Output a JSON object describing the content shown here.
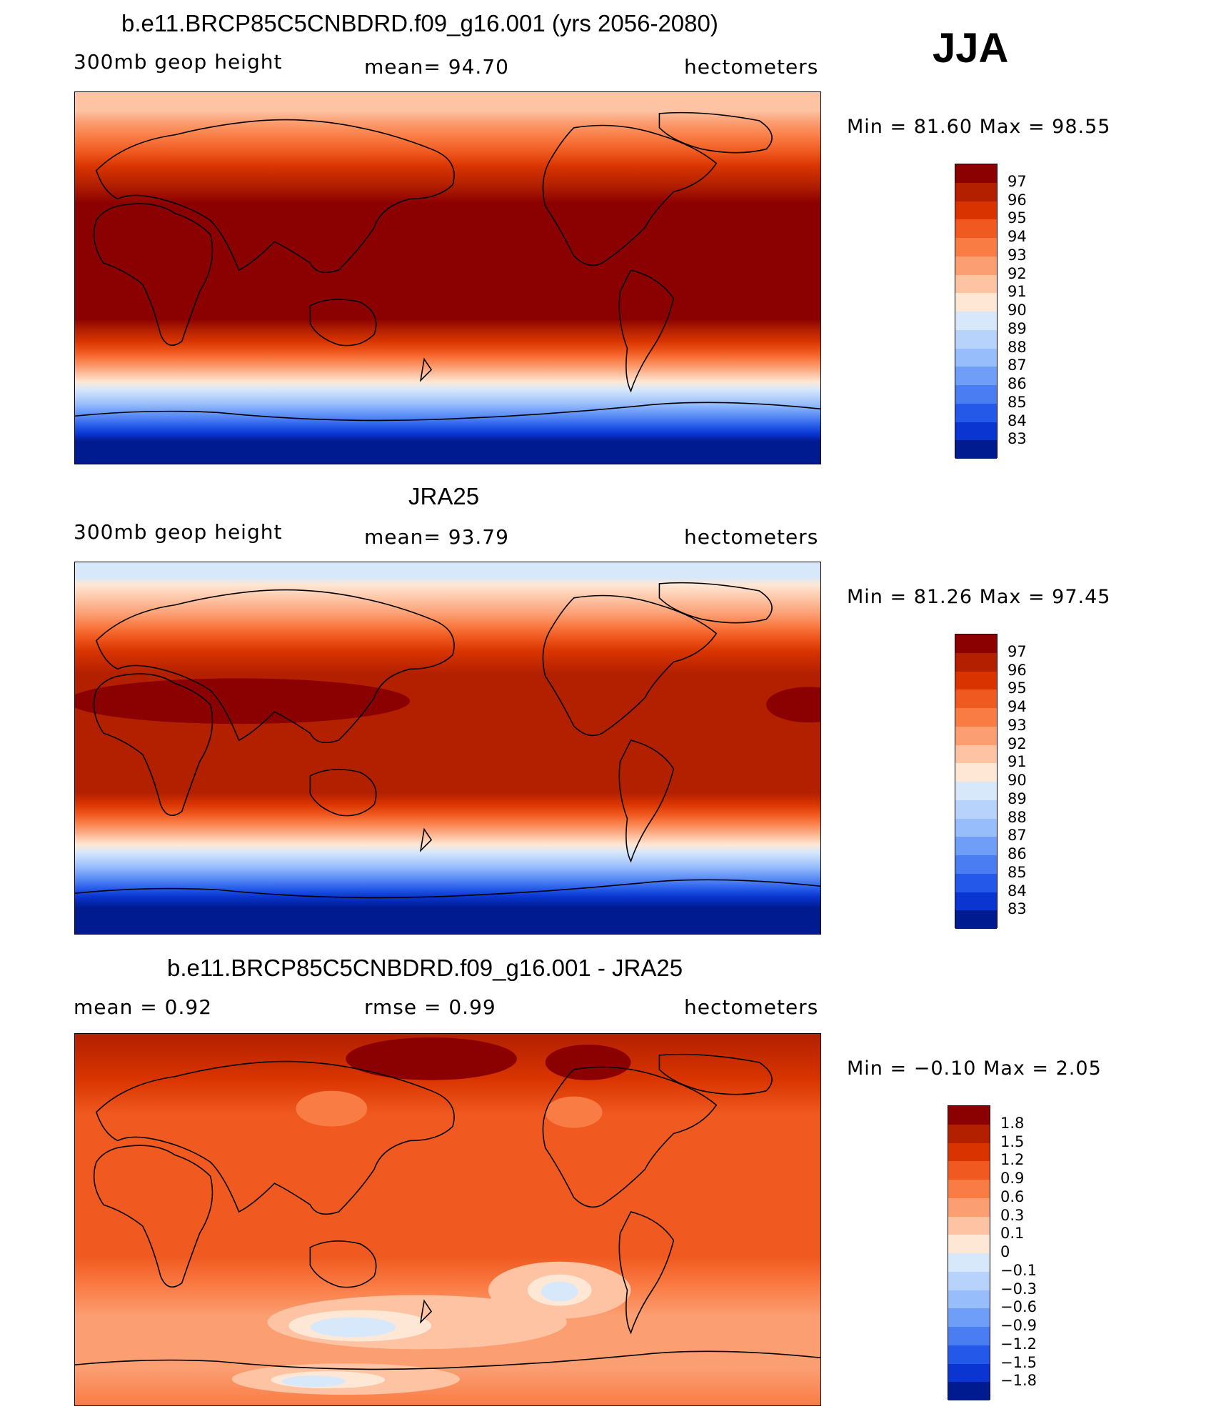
{
  "season": "JJA",
  "panels": [
    {
      "title": "b.e11.BRCP85C5CNBDRD.f09_g16.001 (yrs 2056-2080)",
      "left_label": "300mb geop height",
      "center_label": "mean=   94.70",
      "right_label": "hectometers",
      "minmax": "Min =   81.60 Max =   98.55"
    },
    {
      "title": "JRA25",
      "left_label": "300mb geop height",
      "center_label": "mean=   93.79",
      "right_label": "hectometers",
      "minmax": "Min =   81.26 Max =   97.45"
    },
    {
      "title": "b.e11.BRCP85C5CNBDRD.f09_g16.001 - JRA25",
      "left_label": "mean =    0.92",
      "center_label": "rmse =    0.99",
      "right_label": "hectometers",
      "minmax": "Min =  −0.10 Max =    2.05"
    }
  ],
  "colorbars": {
    "absolute": {
      "labels": [
        "97",
        "96",
        "95",
        "94",
        "93",
        "92",
        "91",
        "90",
        "89",
        "88",
        "87",
        "86",
        "85",
        "84",
        "83"
      ],
      "colors": [
        "#8b0000",
        "#b22000",
        "#d93400",
        "#f05a20",
        "#fa7c45",
        "#fb9e72",
        "#fdc3a3",
        "#fee8d5",
        "#d6e8fa",
        "#b8d3fb",
        "#97bdfb",
        "#6f9ef8",
        "#4a7df2",
        "#2358e8",
        "#0a35d0",
        "#001a90"
      ]
    },
    "difference": {
      "labels": [
        "1.8",
        "1.5",
        "1.2",
        "0.9",
        "0.6",
        "0.3",
        "0.1",
        "0",
        "−0.1",
        "−0.3",
        "−0.6",
        "−0.9",
        "−1.2",
        "−1.5",
        "−1.8"
      ],
      "colors": [
        "#8b0000",
        "#b22000",
        "#d93400",
        "#f05a20",
        "#fa7c45",
        "#fb9e72",
        "#fdc3a3",
        "#fee8d5",
        "#d6e8fa",
        "#b8d3fb",
        "#97bdfb",
        "#6f9ef8",
        "#4a7df2",
        "#2358e8",
        "#0a35d0",
        "#001a90"
      ]
    }
  },
  "chart_data": [
    {
      "type": "heatmap",
      "title": "b.e11.BRCP85C5CNBDRD.f09_g16.001 (yrs 2056-2080)",
      "variable": "300mb geop height",
      "units": "hectometers",
      "mean": 94.7,
      "min": 81.6,
      "max": 98.55,
      "contour_levels": [
        83,
        84,
        85,
        86,
        87,
        88,
        89,
        90,
        91,
        92,
        93,
        94,
        95,
        96,
        97
      ],
      "map_projection": "global cylindrical, centered on Pacific",
      "latitude_profile": {
        "lat": [
          90,
          70,
          60,
          50,
          40,
          30,
          0,
          -20,
          -30,
          -40,
          -45,
          -50,
          -60,
          -70,
          -90
        ],
        "value": [
          91.5,
          92,
          93.5,
          95,
          96,
          97,
          97.5,
          97.3,
          95,
          92,
          90,
          87,
          84,
          82.5,
          82
        ]
      }
    },
    {
      "type": "heatmap",
      "title": "JRA25",
      "variable": "300mb geop height",
      "units": "hectometers",
      "mean": 93.79,
      "min": 81.26,
      "max": 97.45,
      "contour_levels": [
        83,
        84,
        85,
        86,
        87,
        88,
        89,
        90,
        91,
        92,
        93,
        94,
        95,
        96,
        97
      ],
      "latitude_profile": {
        "lat": [
          90,
          70,
          60,
          50,
          40,
          30,
          0,
          -20,
          -30,
          -40,
          -45,
          -50,
          -60,
          -70,
          -90
        ],
        "value": [
          89.5,
          90.5,
          92,
          94,
          95.5,
          96.5,
          96.5,
          96,
          94,
          91,
          89,
          86,
          83.5,
          82,
          81.5
        ]
      }
    },
    {
      "type": "heatmap",
      "title": "b.e11.BRCP85C5CNBDRD.f09_g16.001 - JRA25",
      "units": "hectometers",
      "mean": 0.92,
      "rmse": 0.99,
      "min": -0.1,
      "max": 2.05,
      "contour_levels": [
        -1.8,
        -1.5,
        -1.2,
        -0.9,
        -0.6,
        -0.3,
        -0.1,
        0,
        0.1,
        0.3,
        0.6,
        0.9,
        1.2,
        1.5,
        1.8
      ]
    }
  ]
}
